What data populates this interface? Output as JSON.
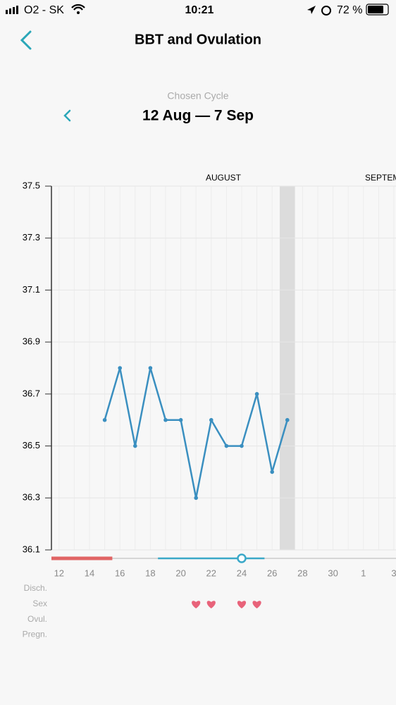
{
  "status_bar": {
    "carrier": "O2 - SK",
    "time": "10:21",
    "battery": "72 %"
  },
  "header": {
    "title": "BBT and Ovulation"
  },
  "cycle": {
    "label": "Chosen Cycle",
    "range": "12 Aug — 7 Sep"
  },
  "chart_data": {
    "type": "line",
    "months": [
      "AUGUST",
      "SEPTEMBER"
    ],
    "x": [
      15,
      16,
      17,
      18,
      19,
      20,
      21,
      22,
      23,
      24,
      25,
      26,
      27
    ],
    "values": [
      36.6,
      36.8,
      36.5,
      36.8,
      36.6,
      36.6,
      36.3,
      36.6,
      36.5,
      36.5,
      36.7,
      36.4,
      36.6
    ],
    "color": "#3a8fc0",
    "xlim": [
      11.5,
      34.14
    ],
    "xticks": [
      12,
      14,
      16,
      18,
      20,
      22,
      24,
      26,
      28,
      30,
      {
        "value": 32,
        "label": "1"
      },
      {
        "value": 34,
        "label": "3"
      }
    ],
    "ylim": [
      36.1,
      37.5
    ],
    "yticks": [
      {
        "value": 37.5,
        "label": "37.5"
      },
      {
        "value": 37.3,
        "label": "37.3"
      },
      {
        "value": 37.1,
        "label": "37.1"
      },
      {
        "value": 36.9,
        "label": "36.9"
      },
      {
        "value": 36.7,
        "label": "36.7"
      },
      {
        "value": 36.5,
        "label": "36.5"
      },
      {
        "value": 36.3,
        "label": "36.3"
      },
      {
        "value": 36.1,
        "label": "36.1"
      }
    ],
    "grid": true,
    "highlight_x": 27,
    "period": [
      12,
      15
    ],
    "period_color": "#e06464",
    "fertile": [
      19,
      25
    ],
    "fertile_color": "#3aa8c8",
    "ovulation": 24,
    "rows": [
      "Disch.",
      "Sex",
      "Ovul.",
      "Pregn."
    ],
    "sex_days": [
      21,
      22,
      24,
      25
    ],
    "heart_color": "#e8637a"
  }
}
